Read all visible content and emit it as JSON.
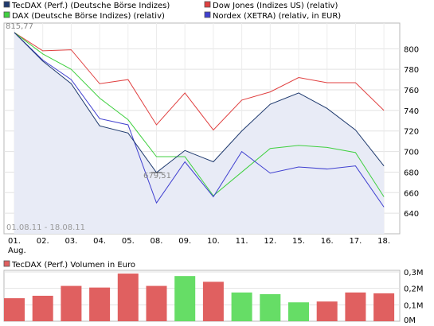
{
  "legend": [
    {
      "label": "TecDAX (Perf.) (Deutsche Börse Indizes)",
      "color": "#1f3a6e"
    },
    {
      "label": "Dow Jones (Indizes US) (relativ)",
      "color": "#e04040"
    },
    {
      "label": "DAX (Deutsche Börse Indizes) (relativ)",
      "color": "#40d040"
    },
    {
      "label": "Nordex (XETRA) (relativ, in EUR)",
      "color": "#4040d0"
    }
  ],
  "annotations": {
    "start_value": "815,77",
    "low_value": "679,51",
    "date_range": "01.08.11 - 18.08.11"
  },
  "x_labels": [
    "01.",
    "02.",
    "03.",
    "04.",
    "05.",
    "08.",
    "09.",
    "10.",
    "11.",
    "12.",
    "15.",
    "16.",
    "17.",
    "18."
  ],
  "x_sublabel": "Aug.",
  "y_ticks": [
    "640",
    "660",
    "680",
    "700",
    "720",
    "740",
    "760",
    "780",
    "800"
  ],
  "volume_title": "TecDAX (Perf.) Volumen in Euro",
  "volume_ticks": [
    "0M",
    "0,1M",
    "0,2M",
    "0,3M"
  ],
  "chart_data": [
    {
      "type": "line",
      "categories": [
        "01.",
        "02.",
        "03.",
        "04.",
        "05.",
        "08.",
        "09.",
        "10.",
        "11.",
        "12.",
        "15.",
        "16.",
        "17.",
        "18."
      ],
      "ylim": [
        620,
        825
      ],
      "series": [
        {
          "name": "TecDAX (Perf.) (Deutsche Börse Indizes)",
          "color": "#1f3a6e",
          "values": [
            815.77,
            788,
            766,
            725,
            718,
            679.51,
            701,
            690,
            720,
            746,
            757,
            742,
            721,
            686
          ]
        },
        {
          "name": "Dow Jones (Indizes US) (relativ)",
          "color": "#e04040",
          "values": [
            815.77,
            798,
            799,
            766,
            770,
            726,
            757,
            721,
            750,
            758,
            772,
            767,
            767,
            740
          ]
        },
        {
          "name": "DAX (Deutsche Börse Indizes) (relativ)",
          "color": "#40d040",
          "values": [
            815.77,
            795,
            780,
            752,
            731,
            695,
            695,
            657,
            680,
            703,
            706,
            704,
            699,
            656
          ]
        },
        {
          "name": "Nordex (XETRA) (relativ, in EUR)",
          "color": "#4040d0",
          "values": [
            815.77,
            789,
            770,
            732,
            726,
            650,
            690,
            656,
            700,
            679,
            685,
            683,
            686,
            646
          ]
        }
      ]
    },
    {
      "type": "bar",
      "title": "TecDAX (Perf.) Volumen in Euro",
      "categories": [
        "01.",
        "02.",
        "03.",
        "04.",
        "05.",
        "08.",
        "09.",
        "10.",
        "11.",
        "12.",
        "15.",
        "16.",
        "17.",
        "18."
      ],
      "ylim": [
        0,
        0.3
      ],
      "values": [
        0.14,
        0.155,
        0.215,
        0.205,
        0.29,
        0.215,
        0.275,
        0.24,
        0.175,
        0.165,
        0.115,
        0.12,
        0.175,
        0.17
      ],
      "colors": [
        "#e06060",
        "#e06060",
        "#e06060",
        "#e06060",
        "#e06060",
        "#e06060",
        "#66dd66",
        "#e06060",
        "#66dd66",
        "#66dd66",
        "#66dd66",
        "#e06060",
        "#e06060",
        "#e06060"
      ]
    }
  ]
}
